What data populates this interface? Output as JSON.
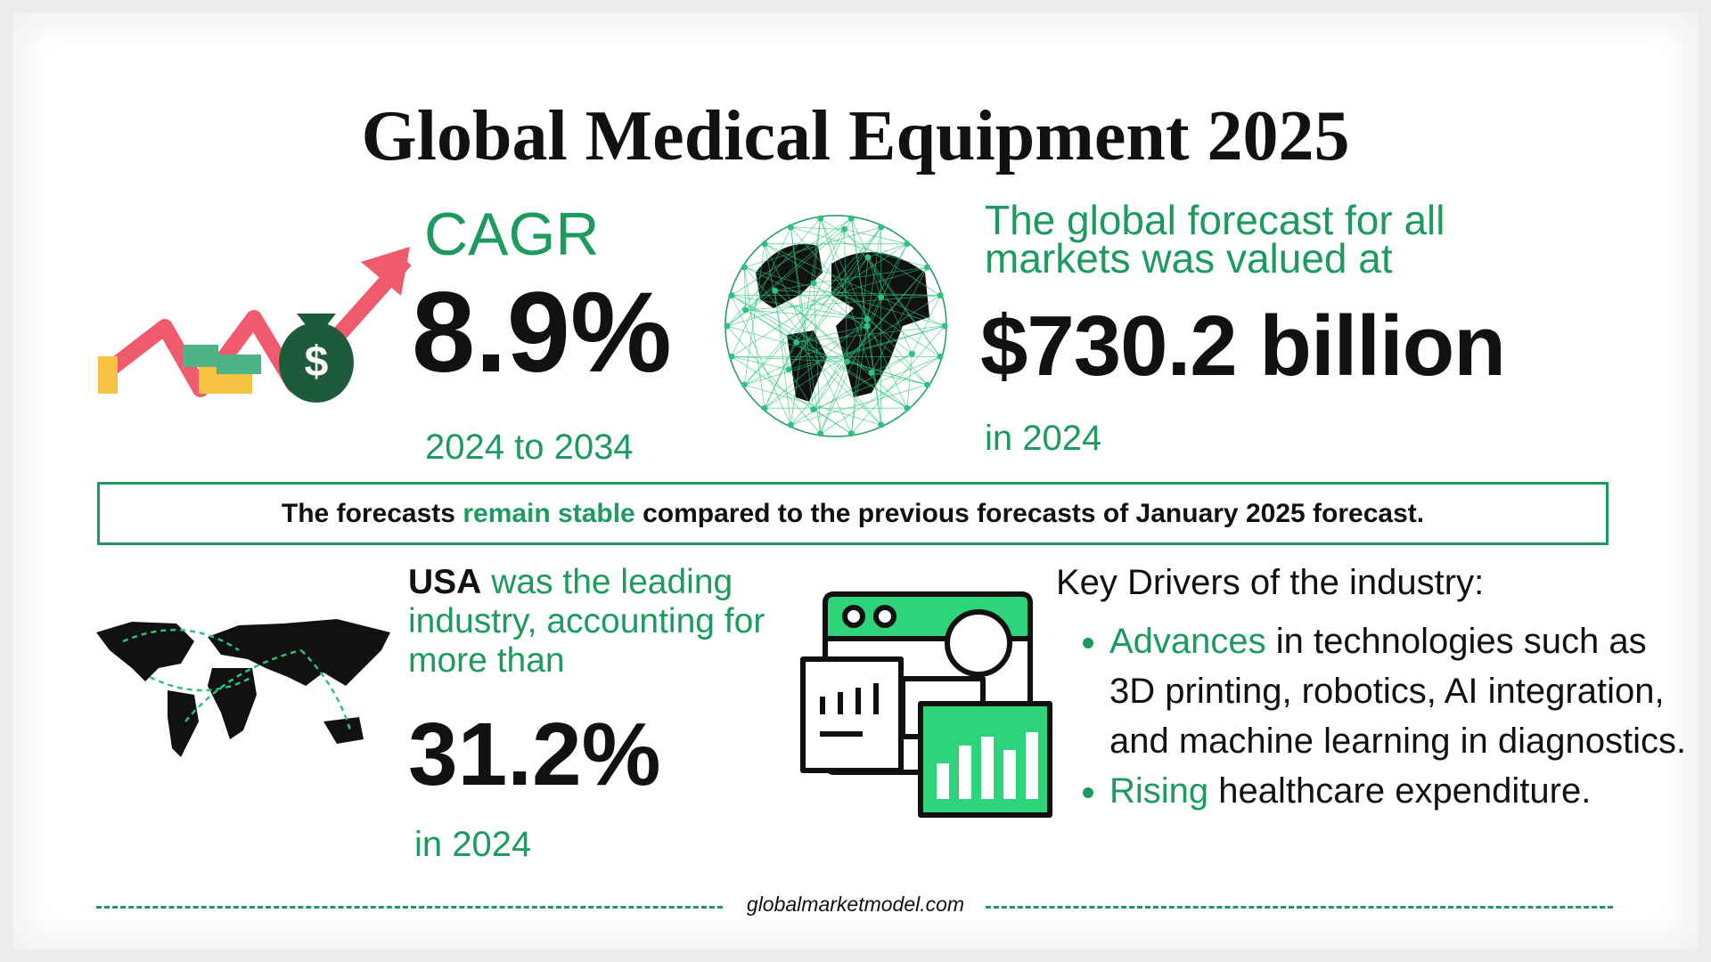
{
  "title": "Global Medical Equipment 2025",
  "cagr": {
    "label": "CAGR",
    "value": "8.9%",
    "period": "2024 to 2034"
  },
  "forecast": {
    "intro": "The global forecast for all markets was valued at",
    "value": "$730.2 billion",
    "year": "in 2024"
  },
  "banner": {
    "parts": [
      "The forecasts",
      "remain stable",
      "compared to the previous forecasts of January 2025 forecast."
    ]
  },
  "usa": {
    "country": "USA",
    "text": "was the leading industry, accounting for more than",
    "value": "31.2%",
    "year": "in 2024"
  },
  "drivers": {
    "heading": "Key Drivers of the industry:",
    "items": [
      {
        "highlight": "Advances",
        "text": "in technologies such as 3D printing, robotics, AI integration, and machine learning in diagnostics."
      },
      {
        "highlight": "Rising",
        "text": "healthcare expenditure."
      }
    ]
  },
  "footer": "globalmarketmodel.com"
}
